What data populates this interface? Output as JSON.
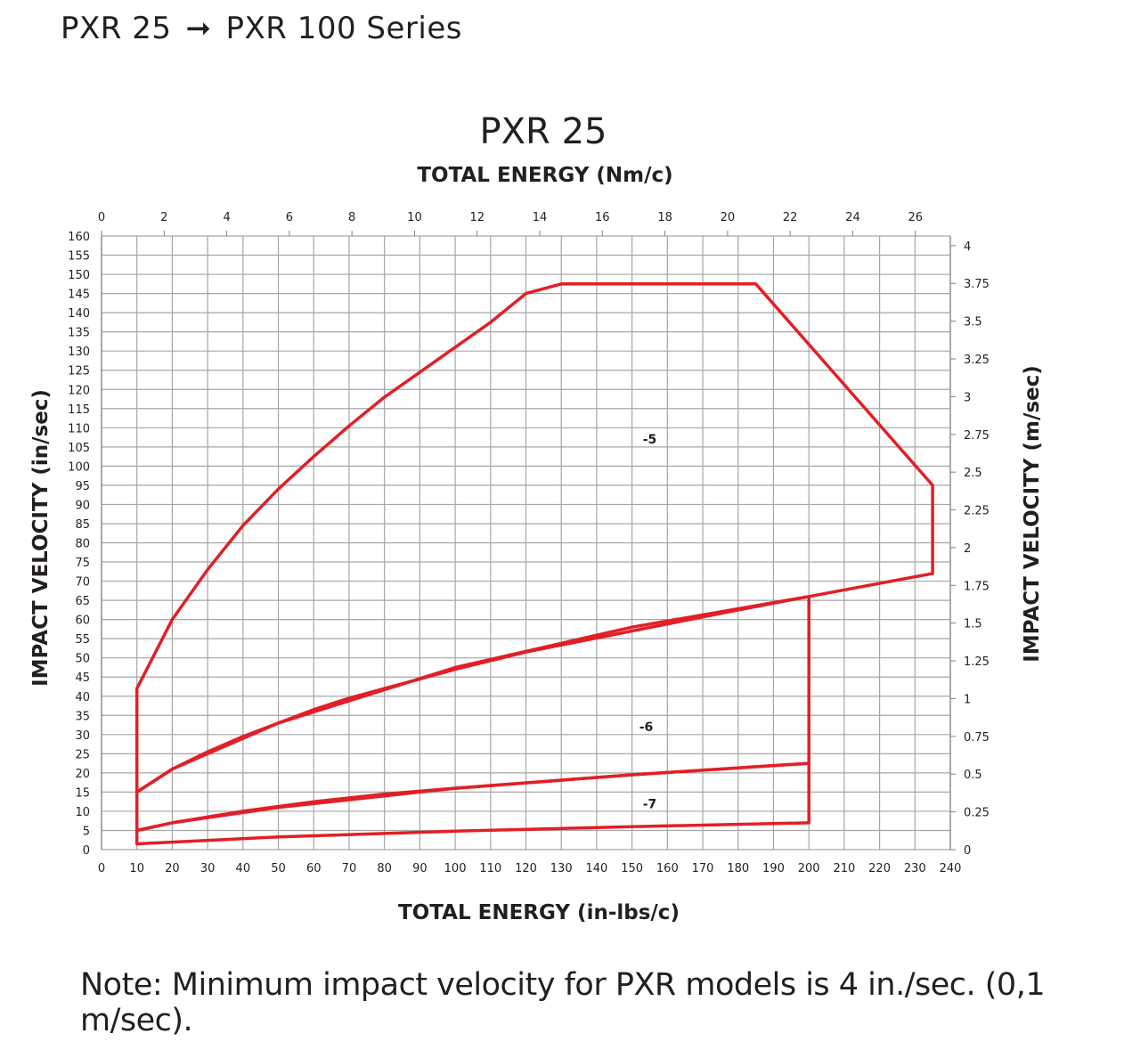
{
  "header": {
    "left": "PXR 25",
    "arrow": "➞",
    "right": "PXR 100 Series"
  },
  "note": "Note: Minimum impact velocity for PXR models is 4 in./sec. (0,1 m/sec).",
  "chart_data": {
    "type": "line",
    "title": "PXR 25",
    "xlabel": "TOTAL ENERGY (in-lbs/c)",
    "x2label": "TOTAL ENERGY (Nm/c)",
    "ylabel": "IMPACT VELOCITY (in/sec)",
    "y2label": "IMPACT VELOCITY (m/sec)",
    "xlim": [
      0,
      240
    ],
    "ylim": [
      0,
      160
    ],
    "x_ticks": [
      0,
      10,
      20,
      30,
      40,
      50,
      60,
      70,
      80,
      90,
      100,
      110,
      120,
      130,
      140,
      150,
      160,
      170,
      180,
      190,
      200,
      210,
      220,
      230,
      240
    ],
    "y_ticks": [
      0,
      5,
      10,
      15,
      20,
      25,
      30,
      35,
      40,
      45,
      50,
      55,
      60,
      65,
      70,
      75,
      80,
      85,
      90,
      95,
      100,
      105,
      110,
      115,
      120,
      125,
      130,
      135,
      140,
      145,
      150,
      155,
      160
    ],
    "x2_ticks": [
      "0",
      "2",
      "4",
      "6",
      "8",
      "10",
      "12",
      "14",
      "16",
      "18",
      "20",
      "22",
      "24",
      "26"
    ],
    "x2_per_x": 8.8507,
    "y2_ticks": [
      "0",
      "0.25",
      "0.5",
      "0.75",
      "1",
      "1.25",
      "1.5",
      "1.75",
      "2",
      "2.25",
      "2.5",
      "2.75",
      "3",
      "3.25",
      "3.5",
      "3.75",
      "4"
    ],
    "y2_per_y": 39.37,
    "grid": true,
    "line_color": "#e21f26",
    "grid_color": "#a6a6a6",
    "series": [
      {
        "name": "-5",
        "x": [
          10,
          10,
          20,
          30,
          40,
          50,
          60,
          70,
          80,
          90,
          100,
          110,
          120,
          130,
          185,
          235,
          235,
          200,
          150,
          100,
          50,
          20,
          10
        ],
        "y": [
          15,
          42,
          60,
          73,
          84.5,
          94,
          102.5,
          110.5,
          118,
          124.5,
          131,
          137.5,
          145,
          147.5,
          147.5,
          95,
          72,
          66,
          58,
          47.5,
          33,
          21,
          15
        ],
        "label_x": 155,
        "label_y": 107
      },
      {
        "name": "-6",
        "x": [
          10,
          10,
          20,
          30,
          40,
          50,
          60,
          70,
          80,
          90,
          100,
          120,
          150,
          180,
          200,
          200,
          200,
          150,
          100,
          50,
          20,
          10
        ],
        "y": [
          5,
          15,
          21,
          25.5,
          29.5,
          33,
          36.5,
          39.5,
          42,
          44.5,
          47,
          51.5,
          57,
          62.5,
          66,
          22.5,
          22.5,
          19.5,
          16,
          11,
          7,
          5
        ],
        "label_x": 154,
        "label_y": 32
      },
      {
        "name": "-7",
        "x": [
          10,
          10,
          20,
          40,
          60,
          80,
          100,
          150,
          200,
          200,
          200,
          150,
          100,
          50,
          10
        ],
        "y": [
          1.5,
          5,
          7,
          10,
          12.5,
          14.5,
          16,
          19.5,
          22.5,
          7,
          7,
          6,
          4.8,
          3.3,
          1.5
        ],
        "label_x": 155,
        "label_y": 12
      }
    ]
  }
}
